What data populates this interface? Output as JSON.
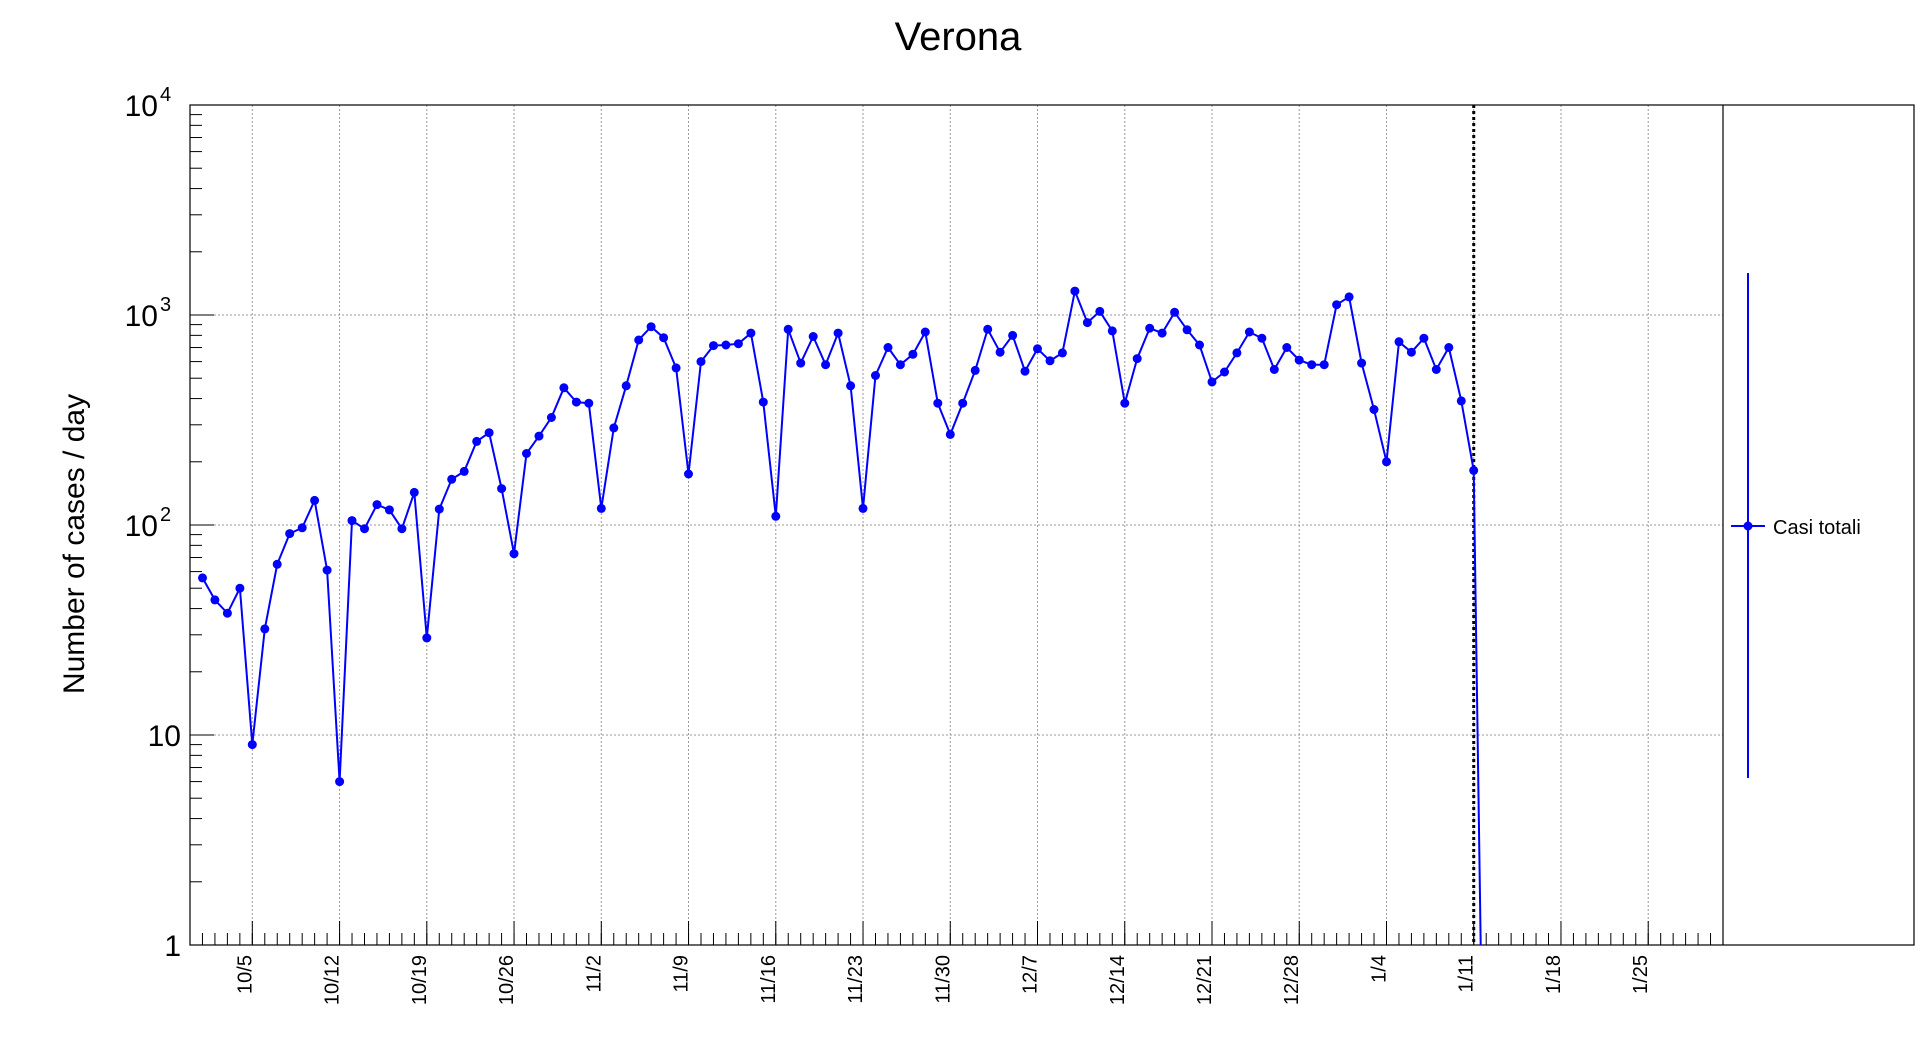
{
  "chart_data": {
    "type": "line",
    "title": "Verona",
    "ylabel": "Number of cases / day",
    "xlabel": "",
    "yscale": "log",
    "ylim": [
      1,
      10000
    ],
    "grid": true,
    "x_start_date": "2020-09-30",
    "x_end_date": "2021-01-31",
    "x_tick_labels": [
      "10/5",
      "10/12",
      "10/19",
      "10/26",
      "11/2",
      "11/9",
      "11/16",
      "11/23",
      "11/30",
      "12/7",
      "12/14",
      "12/21",
      "12/28",
      "1/4",
      "1/11",
      "1/18",
      "1/25"
    ],
    "y_tick_labels": [
      {
        "value": 1,
        "base": "1",
        "exp": ""
      },
      {
        "value": 10,
        "base": "10",
        "exp": ""
      },
      {
        "value": 100,
        "base": "10",
        "exp": "2"
      },
      {
        "value": 1000,
        "base": "10",
        "exp": "3"
      },
      {
        "value": 10000,
        "base": "10",
        "exp": "4"
      }
    ],
    "marker_line_date": "2021-01-11",
    "legend": {
      "placement": "right",
      "entries": [
        "Casi totali"
      ]
    },
    "colors": {
      "series": "#0000ff",
      "axis": "#000000",
      "grid": "#999999"
    },
    "series": [
      {
        "name": "Casi totali",
        "x": [
          "2020-10-01",
          "2020-10-02",
          "2020-10-03",
          "2020-10-04",
          "2020-10-05",
          "2020-10-06",
          "2020-10-07",
          "2020-10-08",
          "2020-10-09",
          "2020-10-10",
          "2020-10-11",
          "2020-10-12",
          "2020-10-13",
          "2020-10-14",
          "2020-10-15",
          "2020-10-16",
          "2020-10-17",
          "2020-10-18",
          "2020-10-19",
          "2020-10-20",
          "2020-10-21",
          "2020-10-22",
          "2020-10-23",
          "2020-10-24",
          "2020-10-25",
          "2020-10-26",
          "2020-10-27",
          "2020-10-28",
          "2020-10-29",
          "2020-10-30",
          "2020-10-31",
          "2020-11-01",
          "2020-11-02",
          "2020-11-03",
          "2020-11-04",
          "2020-11-05",
          "2020-11-06",
          "2020-11-07",
          "2020-11-08",
          "2020-11-09",
          "2020-11-10",
          "2020-11-11",
          "2020-11-12",
          "2020-11-13",
          "2020-11-14",
          "2020-11-15",
          "2020-11-16",
          "2020-11-17",
          "2020-11-18",
          "2020-11-19",
          "2020-11-20",
          "2020-11-21",
          "2020-11-22",
          "2020-11-23",
          "2020-11-24",
          "2020-11-25",
          "2020-11-26",
          "2020-11-27",
          "2020-11-28",
          "2020-11-29",
          "2020-11-30",
          "2020-12-01",
          "2020-12-02",
          "2020-12-03",
          "2020-12-04",
          "2020-12-05",
          "2020-12-06",
          "2020-12-07",
          "2020-12-08",
          "2020-12-09",
          "2020-12-10",
          "2020-12-11",
          "2020-12-12",
          "2020-12-13",
          "2020-12-14",
          "2020-12-15",
          "2020-12-16",
          "2020-12-17",
          "2020-12-18",
          "2020-12-19",
          "2020-12-20",
          "2020-12-21",
          "2020-12-22",
          "2020-12-23",
          "2020-12-24",
          "2020-12-25",
          "2020-12-26",
          "2020-12-27",
          "2020-12-28",
          "2020-12-29",
          "2020-12-30",
          "2020-12-31",
          "2021-01-01",
          "2021-01-02",
          "2021-01-03",
          "2021-01-04",
          "2021-01-05",
          "2021-01-06",
          "2021-01-07",
          "2021-01-08",
          "2021-01-09",
          "2021-01-10",
          "2021-01-11"
        ],
        "values": [
          56,
          44,
          38,
          50,
          9,
          32,
          65,
          91,
          97,
          131,
          61,
          6,
          105,
          96,
          125,
          118,
          96,
          143,
          29,
          119,
          165,
          180,
          250,
          275,
          149,
          73,
          219,
          265,
          325,
          450,
          385,
          380,
          120,
          290,
          460,
          760,
          880,
          780,
          560,
          175,
          600,
          715,
          720,
          730,
          820,
          385,
          110,
          855,
          590,
          790,
          580,
          820,
          460,
          120,
          515,
          700,
          580,
          650,
          830,
          380,
          270,
          380,
          545,
          855,
          665,
          800,
          540,
          690,
          605,
          660,
          1300,
          920,
          1040,
          840,
          380,
          620,
          865,
          820,
          1030,
          850,
          720,
          480,
          535,
          660,
          830,
          775,
          550,
          700,
          610,
          580,
          580,
          1120,
          1220,
          590,
          355,
          200,
          745,
          665,
          775,
          550,
          700,
          390,
          182
        ],
        "final_drop_value": 1
      }
    ]
  }
}
